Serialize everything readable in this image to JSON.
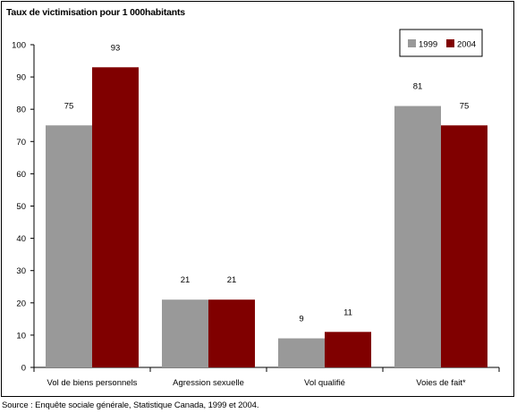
{
  "chart_data": {
    "type": "bar",
    "title": "Taux de victimisation pour 1 000habitants",
    "categories": [
      "Vol de biens personnels",
      "Agression sexuelle",
      "Vol qualifié",
      "Voies de fait*"
    ],
    "series": [
      {
        "name": "1999",
        "values": [
          75,
          21,
          9,
          81
        ],
        "color": "#999999"
      },
      {
        "name": "2004",
        "values": [
          93,
          21,
          11,
          75
        ],
        "color": "#800000"
      }
    ],
    "ylim": [
      0,
      100
    ],
    "yticks": [
      0,
      10,
      20,
      30,
      40,
      50,
      60,
      70,
      80,
      90,
      100
    ],
    "grid": false,
    "legend": "top-right"
  },
  "source": "Source : Enquête sociale générale, Statistique Canada, 1999 et 2004."
}
